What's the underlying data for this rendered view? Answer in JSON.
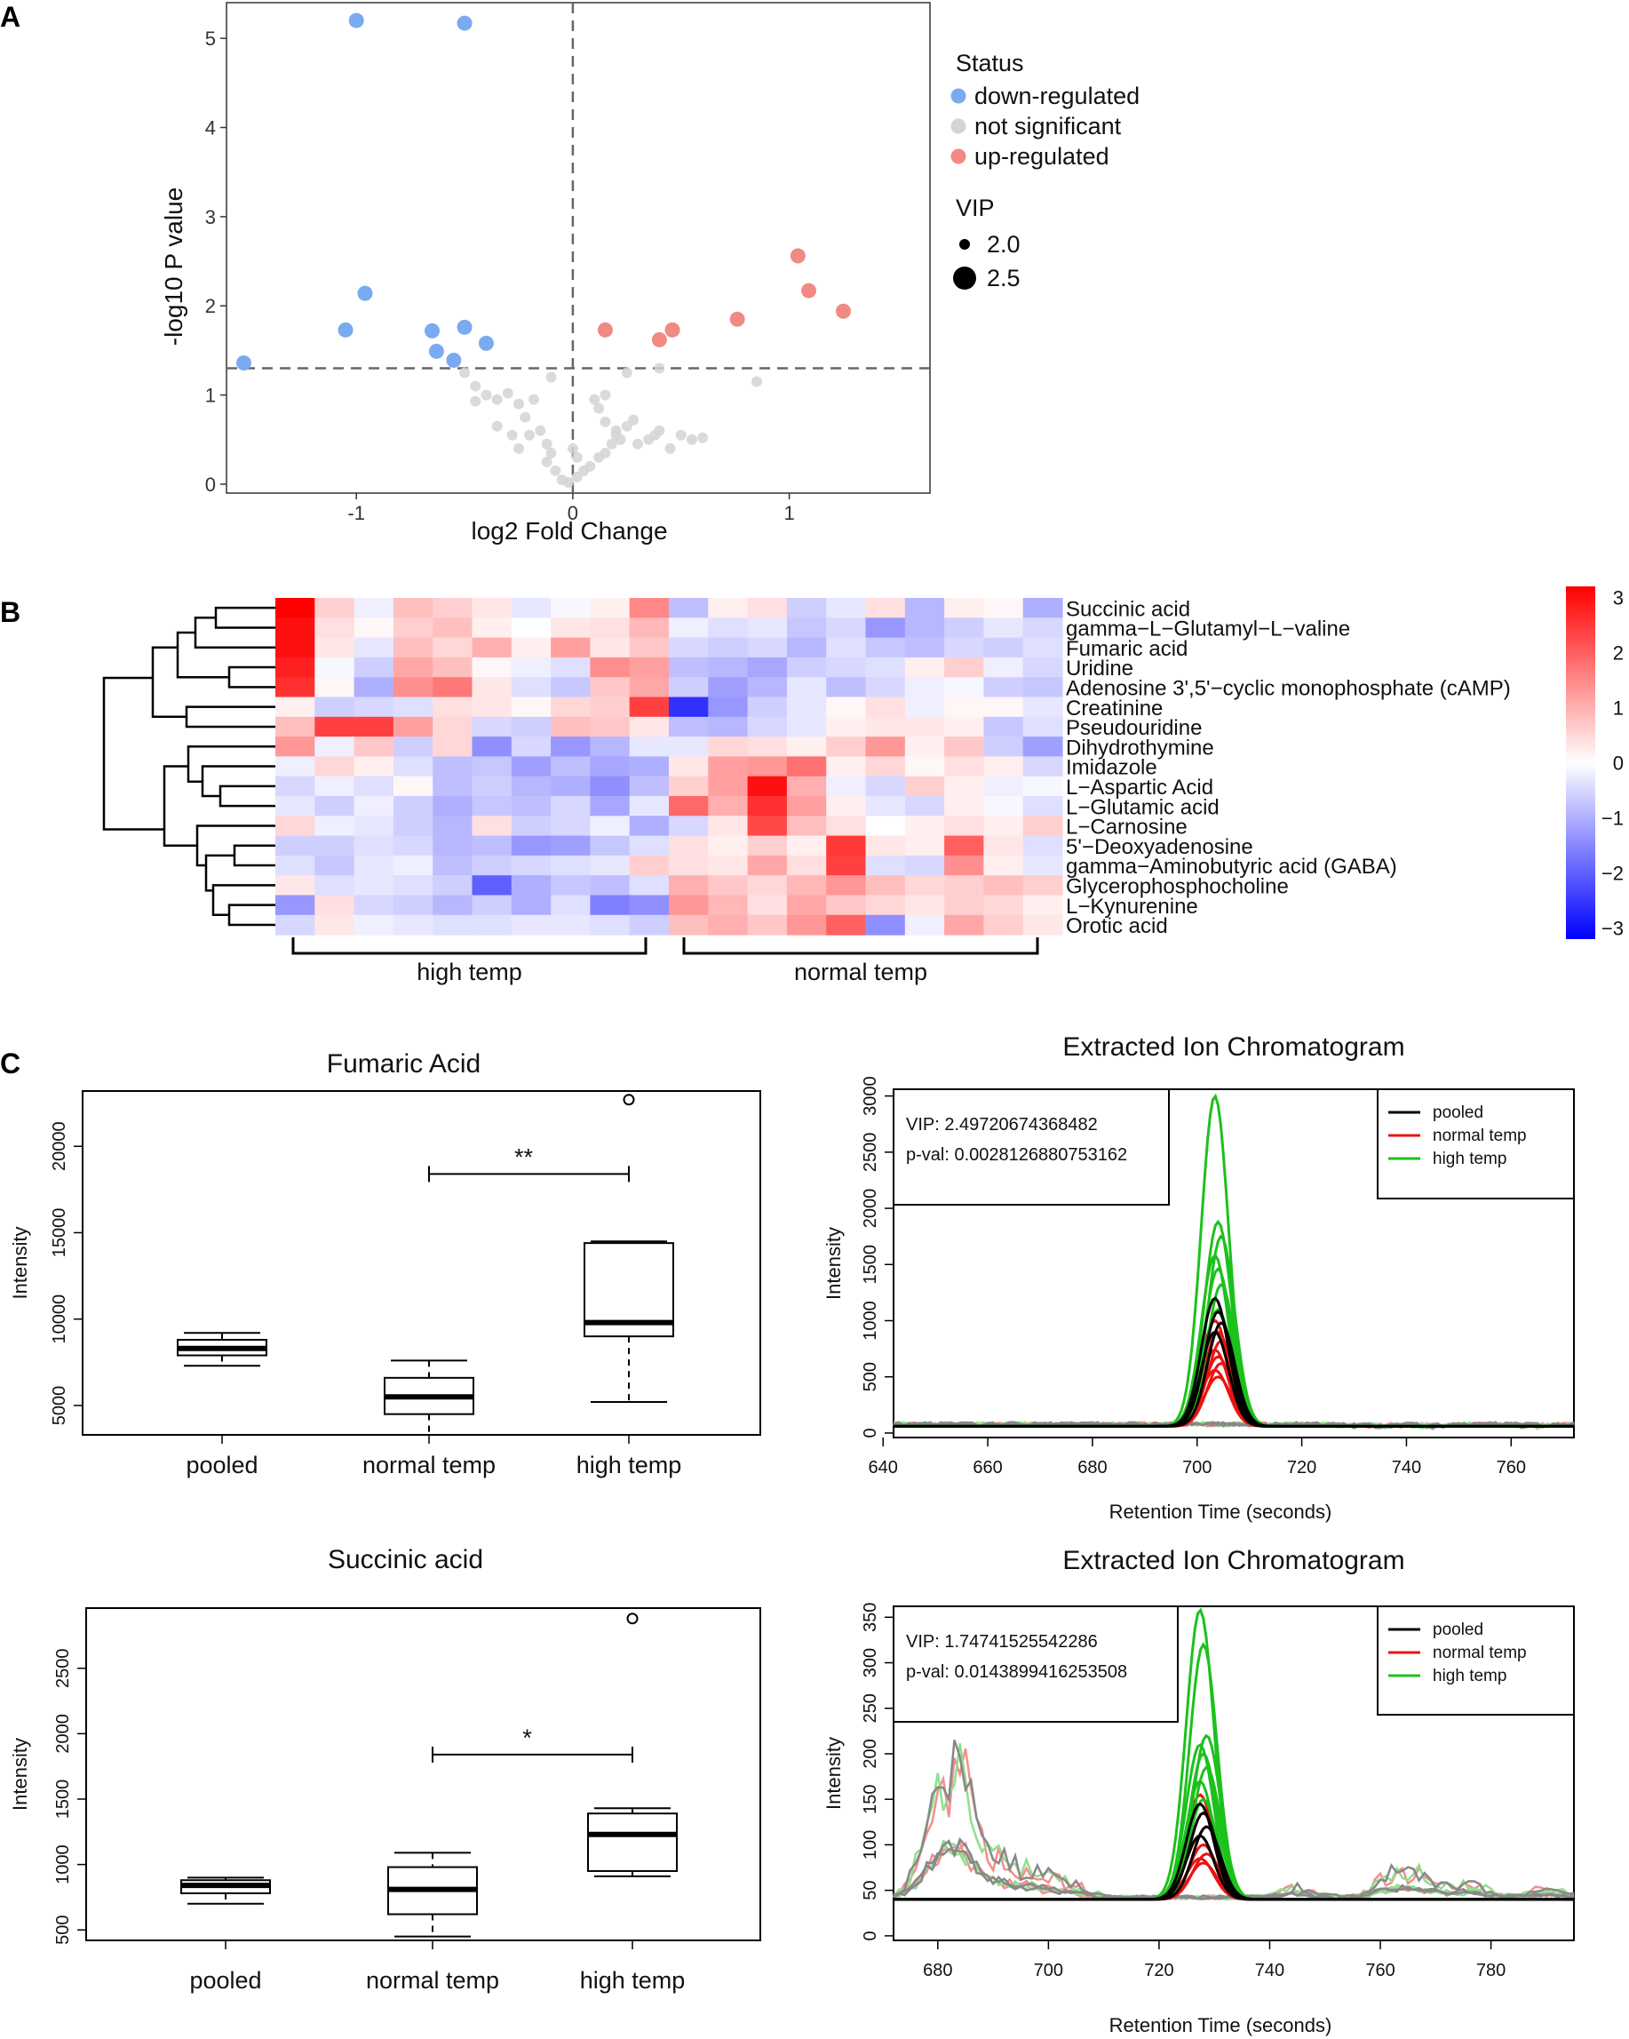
{
  "panels": {
    "a": "A",
    "b": "B",
    "c": "C"
  },
  "colors": {
    "down": "#7aaaf0",
    "ns": "#d4d4d4",
    "up": "#f08a82",
    "pooled": "#000000",
    "normal": "#ee1111",
    "high": "#1cc11c",
    "heat_low": "#0000ff",
    "heat_mid": "#ffffff",
    "heat_high": "#ff0000"
  },
  "chart_data": [
    {
      "id": "volcano",
      "type": "scatter",
      "title": "",
      "xlabel": "log2 Fold Change",
      "ylabel": "-log10 P value",
      "xlim": [
        -1.6,
        1.65
      ],
      "ylim": [
        -0.1,
        5.4
      ],
      "xticks": [
        -1,
        0,
        1
      ],
      "yticks": [
        0,
        1,
        2,
        3,
        4,
        5
      ],
      "threshold_y": 1.3,
      "threshold_x": 0,
      "legend": {
        "status_title": "Status",
        "status_items": [
          "down-regulated",
          "not significant",
          "up-regulated"
        ],
        "vip_title": "VIP",
        "vip_items": [
          "2.0",
          "2.5"
        ]
      },
      "series": [
        {
          "name": "down-regulated",
          "points": [
            [
              -1.0,
              5.2
            ],
            [
              -0.5,
              5.17
            ],
            [
              -0.96,
              2.14
            ],
            [
              -1.05,
              1.73
            ],
            [
              -0.65,
              1.72
            ],
            [
              -0.5,
              1.76
            ],
            [
              -0.4,
              1.58
            ],
            [
              -0.63,
              1.49
            ],
            [
              -0.55,
              1.39
            ],
            [
              -1.52,
              1.36
            ]
          ]
        },
        {
          "name": "not significant",
          "points": [
            [
              -0.5,
              1.25
            ],
            [
              -0.45,
              1.1
            ],
            [
              -0.4,
              1.0
            ],
            [
              -0.45,
              0.93
            ],
            [
              -0.35,
              0.95
            ],
            [
              -0.3,
              1.02
            ],
            [
              -0.25,
              0.9
            ],
            [
              -0.22,
              0.75
            ],
            [
              -0.18,
              0.95
            ],
            [
              -0.2,
              0.55
            ],
            [
              -0.25,
              0.4
            ],
            [
              -0.12,
              0.45
            ],
            [
              -0.1,
              0.35
            ],
            [
              -0.12,
              0.25
            ],
            [
              -0.08,
              0.15
            ],
            [
              -0.05,
              0.05
            ],
            [
              -0.02,
              0.02
            ],
            [
              0.02,
              0.08
            ],
            [
              0.05,
              0.15
            ],
            [
              0.08,
              0.2
            ],
            [
              0.12,
              0.3
            ],
            [
              0.15,
              0.35
            ],
            [
              0.18,
              0.45
            ],
            [
              0.22,
              0.5
            ],
            [
              0.2,
              0.6
            ],
            [
              0.15,
              0.7
            ],
            [
              0.12,
              0.85
            ],
            [
              0.1,
              0.95
            ],
            [
              0.15,
              1.0
            ],
            [
              0.2,
              0.55
            ],
            [
              0.25,
              0.65
            ],
            [
              0.28,
              0.72
            ],
            [
              0.3,
              0.45
            ],
            [
              0.35,
              0.5
            ],
            [
              0.38,
              0.55
            ],
            [
              0.4,
              0.6
            ],
            [
              0.45,
              0.4
            ],
            [
              0.5,
              0.55
            ],
            [
              0.55,
              0.5
            ],
            [
              0.6,
              0.52
            ],
            [
              0.85,
              1.15
            ],
            [
              0.4,
              1.3
            ],
            [
              0.25,
              1.25
            ],
            [
              -0.1,
              1.2
            ],
            [
              -0.15,
              0.6
            ],
            [
              -0.28,
              0.55
            ],
            [
              -0.35,
              0.65
            ],
            [
              0.02,
              0.3
            ],
            [
              0.0,
              0.4
            ]
          ]
        },
        {
          "name": "up-regulated",
          "points": [
            [
              0.15,
              1.73
            ],
            [
              0.4,
              1.62
            ],
            [
              0.46,
              1.73
            ],
            [
              0.76,
              1.85
            ],
            [
              1.04,
              2.56
            ],
            [
              1.09,
              2.17
            ],
            [
              1.25,
              1.94
            ]
          ]
        }
      ]
    },
    {
      "id": "heatmap",
      "type": "heatmap",
      "title": "",
      "row_labels": [
        "Succinic acid",
        "gamma−L−Glutamyl−L−valine",
        "Fumaric acid",
        "Uridine",
        "Adenosine 3',5'−cyclic monophosphate (cAMP)",
        "Creatinine",
        "Pseudouridine",
        "Dihydrothymine",
        "Imidazole",
        "L−Aspartic Acid",
        "L−Glutamic acid",
        "L−Carnosine",
        "5'−Deoxyadenosine",
        "gamma−Aminobutyric acid (GABA)",
        "Glycerophosphocholine",
        "L−Kynurenine",
        "Orotic acid"
      ],
      "group_labels": [
        "high temp",
        "normal temp"
      ],
      "group_sizes": [
        10,
        10
      ],
      "color_range": [
        -3.2,
        3.2
      ],
      "colorbar_ticks": [
        "3",
        "2",
        "1",
        "0",
        "−1",
        "−2",
        "−3"
      ],
      "values": [
        [
          3.2,
          0.6,
          -0.2,
          0.8,
          0.6,
          0.3,
          -0.3,
          -0.1,
          0.2,
          1.5,
          -0.8,
          0.2,
          0.4,
          -0.6,
          -0.3,
          0.4,
          -0.9,
          0.2,
          0.1,
          -1.0
        ],
        [
          3.0,
          0.4,
          0.1,
          0.6,
          0.8,
          0.2,
          0.0,
          0.3,
          0.4,
          0.9,
          -0.2,
          -0.4,
          -0.3,
          -0.7,
          -0.5,
          -1.3,
          -0.9,
          -0.6,
          -0.3,
          -0.5
        ],
        [
          3.0,
          0.3,
          -0.3,
          0.8,
          0.5,
          1.0,
          0.2,
          1.2,
          0.3,
          0.7,
          -0.5,
          -0.6,
          -0.5,
          -0.9,
          -0.4,
          -0.7,
          -0.8,
          -0.5,
          -0.6,
          -0.4
        ],
        [
          2.8,
          -0.1,
          -0.6,
          1.1,
          0.8,
          0.1,
          -0.2,
          -0.4,
          1.4,
          1.2,
          -0.8,
          -0.9,
          -1.1,
          -0.6,
          -0.5,
          -0.4,
          0.2,
          0.6,
          -0.2,
          -0.5
        ],
        [
          2.6,
          0.1,
          -1.0,
          1.4,
          1.7,
          0.3,
          -0.4,
          -0.7,
          0.7,
          1.1,
          -0.6,
          -1.2,
          -0.9,
          -0.3,
          -0.8,
          -0.5,
          -0.2,
          -0.1,
          -0.6,
          -0.7
        ],
        [
          0.2,
          -0.6,
          -0.5,
          -0.4,
          0.4,
          0.3,
          0.1,
          0.5,
          0.6,
          2.4,
          -2.6,
          -1.3,
          -0.6,
          -0.3,
          0.1,
          0.4,
          -0.2,
          0.1,
          0.1,
          -0.3
        ],
        [
          0.8,
          2.4,
          2.4,
          1.2,
          0.5,
          -0.5,
          -0.6,
          0.8,
          0.7,
          0.3,
          -0.8,
          -0.9,
          -0.5,
          -0.3,
          0.2,
          0.3,
          0.3,
          0.2,
          -0.7,
          -0.4
        ],
        [
          1.3,
          -0.2,
          0.7,
          -0.6,
          0.5,
          -1.4,
          -0.5,
          -1.3,
          -0.9,
          -0.3,
          -0.3,
          0.5,
          0.4,
          0.2,
          0.6,
          1.3,
          0.2,
          0.7,
          -0.6,
          -1.2
        ],
        [
          -0.2,
          0.5,
          0.2,
          -0.4,
          -0.8,
          -0.7,
          -1.2,
          -0.8,
          -1.1,
          -1.0,
          0.3,
          1.2,
          1.3,
          1.8,
          0.2,
          0.5,
          0.1,
          0.4,
          0.2,
          -0.5
        ],
        [
          -0.5,
          -0.2,
          -0.4,
          0.1,
          -0.8,
          -0.6,
          -0.9,
          -1.0,
          -1.4,
          -0.8,
          0.6,
          1.2,
          3.0,
          1.0,
          -0.2,
          -0.5,
          0.6,
          0.2,
          -0.2,
          -0.1
        ],
        [
          -0.3,
          -0.6,
          -0.2,
          -0.6,
          -1.0,
          -0.7,
          -0.8,
          -0.5,
          -1.1,
          -0.3,
          1.9,
          1.0,
          2.6,
          1.2,
          0.2,
          -0.3,
          -0.5,
          0.2,
          -0.1,
          -0.4
        ],
        [
          0.5,
          -0.2,
          -0.3,
          -0.6,
          -0.9,
          0.4,
          -0.6,
          -0.5,
          -0.2,
          -1.0,
          -0.5,
          0.3,
          2.3,
          0.8,
          0.4,
          0.0,
          0.2,
          0.4,
          0.2,
          0.6
        ],
        [
          -0.6,
          -0.6,
          -0.4,
          -0.5,
          -0.9,
          -0.8,
          -1.3,
          -1.2,
          -0.7,
          -0.4,
          0.4,
          0.2,
          0.6,
          0.2,
          2.5,
          0.3,
          0.2,
          2.0,
          0.3,
          -0.4
        ],
        [
          -0.4,
          -0.7,
          -0.3,
          -0.2,
          -0.8,
          -0.6,
          -0.5,
          -0.4,
          -0.3,
          0.6,
          0.4,
          0.3,
          1.1,
          0.4,
          2.4,
          -0.4,
          -0.5,
          1.4,
          0.2,
          -0.3
        ],
        [
          0.3,
          -0.4,
          -0.3,
          -0.4,
          -0.6,
          -2.0,
          -1.0,
          -0.7,
          -0.8,
          -0.4,
          1.0,
          0.7,
          0.5,
          0.9,
          1.3,
          0.8,
          0.5,
          0.6,
          0.8,
          0.6
        ],
        [
          -1.3,
          0.4,
          -0.5,
          -0.6,
          -0.9,
          -0.6,
          -1.0,
          -0.4,
          -1.6,
          -1.4,
          1.3,
          0.9,
          0.4,
          1.1,
          0.7,
          0.5,
          0.3,
          0.6,
          0.5,
          0.2
        ],
        [
          -0.5,
          0.3,
          -0.2,
          -0.3,
          -0.4,
          -0.4,
          -0.3,
          -0.3,
          -0.4,
          -0.6,
          0.8,
          1.0,
          0.7,
          1.3,
          2.0,
          -1.4,
          -0.2,
          1.1,
          0.6,
          0.3
        ]
      ]
    },
    {
      "id": "box-fumaric",
      "type": "box",
      "title": "Fumaric Acid",
      "xlabel": "",
      "ylabel": "Intensity",
      "categories": [
        "pooled",
        "normal temp",
        "high temp"
      ],
      "ylim": [
        3300,
        23200
      ],
      "yticks": [
        5000,
        10000,
        15000,
        20000
      ],
      "boxes": [
        {
          "min": 7300,
          "q1": 7900,
          "median": 8300,
          "q3": 8800,
          "max": 9200,
          "outliers": []
        },
        {
          "min": 3300,
          "q1": 4500,
          "median": 5500,
          "q3": 6600,
          "max": 7600,
          "outliers": []
        },
        {
          "min": 5200,
          "q1": 9000,
          "median": 9800,
          "q3": 14400,
          "max": 14500,
          "outliers": [
            22700
          ]
        }
      ],
      "significance": {
        "from": 1,
        "to": 2,
        "label": "**",
        "y": 18400
      }
    },
    {
      "id": "eic-fumaric",
      "type": "line",
      "title": "Extracted Ion Chromatogram",
      "xlabel": "Retention Time (seconds)",
      "ylabel": "Intensity",
      "xlim": [
        642,
        772
      ],
      "ylim": [
        -40,
        3060
      ],
      "xticks": [
        640,
        660,
        680,
        700,
        720,
        740,
        760
      ],
      "yticks": [
        0,
        500,
        1000,
        1500,
        2000,
        2500,
        3000
      ],
      "peak_center": 704,
      "peak_width": 2.6,
      "baseline": 60,
      "vip_text": "VIP: 2.49720674368482",
      "pval_text": "p-val: 0.0028126880753162",
      "legend": [
        "pooled",
        "normal temp",
        "high temp"
      ],
      "peaks": {
        "pooled": [
          1200,
          1080,
          980,
          900
        ],
        "normal temp": [
          1000,
          900,
          820,
          740,
          680,
          620,
          560,
          500
        ],
        "high temp": [
          3000,
          1880,
          1750,
          1580,
          1460,
          1320,
          1200,
          1100
        ]
      },
      "noise_bumps": [
        [
          720,
          60
        ],
        [
          728,
          40
        ],
        [
          735,
          30
        ],
        [
          745,
          25
        ],
        [
          765,
          30
        ]
      ]
    },
    {
      "id": "box-succinic",
      "type": "box",
      "title": "Succinic acid",
      "xlabel": "",
      "ylabel": "Intensity",
      "categories": [
        "pooled",
        "normal temp",
        "high temp"
      ],
      "ylim": [
        420,
        2960
      ],
      "yticks": [
        500,
        1000,
        1500,
        2000,
        2500
      ],
      "boxes": [
        {
          "min": 700,
          "q1": 780,
          "median": 840,
          "q3": 880,
          "max": 900,
          "outliers": []
        },
        {
          "min": 450,
          "q1": 620,
          "median": 810,
          "q3": 980,
          "max": 1090,
          "outliers": []
        },
        {
          "min": 910,
          "q1": 950,
          "median": 1230,
          "q3": 1390,
          "max": 1430,
          "outliers": [
            2880
          ]
        }
      ],
      "significance": {
        "from": 1,
        "to": 2,
        "label": "*",
        "y": 1840
      }
    },
    {
      "id": "eic-succinic",
      "type": "line",
      "title": "Extracted Ion Chromatogram",
      "xlabel": "Retention Time (seconds)",
      "ylabel": "Intensity",
      "xlim": [
        672,
        795
      ],
      "ylim": [
        -5,
        362
      ],
      "xticks": [
        680,
        700,
        720,
        740,
        760,
        780
      ],
      "yticks": [
        0,
        50,
        100,
        150,
        200,
        250,
        300,
        350
      ],
      "peak_center": 728,
      "peak_width": 2.5,
      "baseline": 40,
      "vip_text": "VIP: 1.74741525542286",
      "pval_text": "p-val: 0.0143899416253508",
      "legend": [
        "pooled",
        "normal temp",
        "high temp"
      ],
      "peaks": {
        "pooled": [
          145,
          135,
          120,
          110
        ],
        "normal temp": [
          155,
          135,
          120,
          110,
          100,
          90,
          85,
          80
        ],
        "high temp": [
          358,
          320,
          220,
          210,
          200,
          185,
          170,
          150
        ]
      },
      "noise_bumps": [
        [
          684,
          165
        ],
        [
          679,
          110
        ],
        [
          681,
          95
        ],
        [
          686,
          80
        ],
        [
          692,
          85
        ],
        [
          698,
          75
        ],
        [
          704,
          60
        ],
        [
          762,
          75
        ],
        [
          768,
          70
        ],
        [
          776,
          60
        ],
        [
          790,
          55
        ],
        [
          745,
          55
        ]
      ]
    }
  ]
}
